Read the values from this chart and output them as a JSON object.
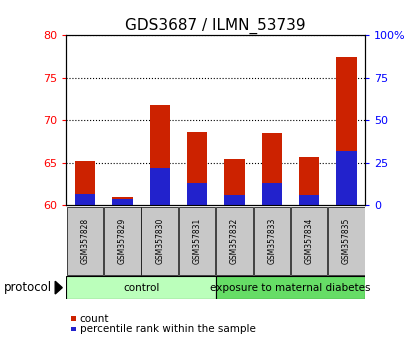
{
  "title": "GDS3687 / ILMN_53739",
  "samples": [
    "GSM357828",
    "GSM357829",
    "GSM357830",
    "GSM357831",
    "GSM357832",
    "GSM357833",
    "GSM357834",
    "GSM357835"
  ],
  "count_values": [
    65.2,
    61.0,
    71.8,
    68.6,
    65.5,
    68.5,
    65.7,
    77.4
  ],
  "percentile_values": [
    61.3,
    60.8,
    64.4,
    62.6,
    61.2,
    62.6,
    61.2,
    66.4
  ],
  "left_ylim": [
    60,
    80
  ],
  "left_yticks": [
    60,
    65,
    70,
    75,
    80
  ],
  "right_ylim": [
    0,
    100
  ],
  "right_yticks": [
    0,
    25,
    50,
    75,
    100
  ],
  "right_yticklabels": [
    "0",
    "25",
    "50",
    "75",
    "100%"
  ],
  "bar_color": "#cc2200",
  "percentile_color": "#2222cc",
  "protocol_groups": [
    {
      "label": "control",
      "start": 0,
      "end": 4,
      "color": "#bbffbb"
    },
    {
      "label": "exposure to maternal diabetes",
      "start": 4,
      "end": 8,
      "color": "#66dd66"
    }
  ],
  "protocol_label": "protocol",
  "bar_width": 0.55,
  "tick_bg_color": "#c8c8c8",
  "title_fontsize": 11
}
